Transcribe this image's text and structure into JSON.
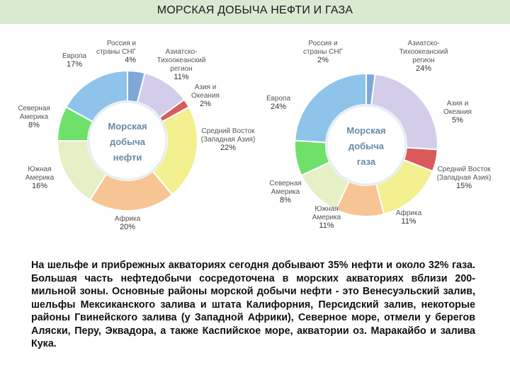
{
  "page": {
    "title": "МОРСКАЯ ДОБЫЧА НЕФТИ И ГАЗА",
    "description": "На шельфе и прибрежных акваториях сегодня добывают 35% нефти и около 32% газа. Большая часть нефтедобычи сосредоточена в морских акваториях вблизи 200-мильной зоны. Основные районы морской добычи нефти - это Венесуэльский залив, шельфы Мексиканского залива и штата Калифорния, Персидский залив, некоторые районы Гвинейского залива (у Западной Африки), Северное море, отмели у берегов Аляски, Перу, Эквадора, а также Каспийское море, акватории оз. Маракайбо и залива Кука."
  },
  "chart_data": [
    {
      "type": "pie",
      "center_label": [
        "Морская",
        "добыча",
        "нефти"
      ],
      "slices": [
        {
          "label": [
            "Россия и",
            "страны СНГ"
          ],
          "value": 4,
          "value_label": "4%",
          "color": "#7fa8d6"
        },
        {
          "label": [
            "Азиатско-",
            "Тихоокеанский",
            "регион"
          ],
          "value": 11,
          "value_label": "11%",
          "color": "#d3cdea"
        },
        {
          "label": [
            "Азия и",
            "Океания"
          ],
          "value": 2,
          "value_label": "2%",
          "color": "#d95b5b"
        },
        {
          "label": [
            "Средний Восток",
            "(Западная Азия)"
          ],
          "value": 22,
          "value_label": "22%",
          "color": "#f3f08f"
        },
        {
          "label": [
            "Африка"
          ],
          "value": 20,
          "value_label": "20%",
          "color": "#f7c493"
        },
        {
          "label": [
            "Южная",
            "Америка"
          ],
          "value": 16,
          "value_label": "16%",
          "color": "#e6f0c6"
        },
        {
          "label": [
            "Северная",
            "Америка"
          ],
          "value": 8,
          "value_label": "8%",
          "color": "#6fe06a"
        },
        {
          "label": [
            "Европа"
          ],
          "value": 17,
          "value_label": "17%",
          "color": "#8fc4ea"
        }
      ]
    },
    {
      "type": "pie",
      "center_label": [
        "Морская",
        "добыча",
        "газа"
      ],
      "slices": [
        {
          "label": [
            "Россия и",
            "страны СНГ"
          ],
          "value": 2,
          "value_label": "2%",
          "color": "#7fa8d6"
        },
        {
          "label": [
            "Азиатско-",
            "Тихоокеанский",
            "регион"
          ],
          "value": 24,
          "value_label": "24%",
          "color": "#d3cdea"
        },
        {
          "label": [
            "Азия и",
            "Океания"
          ],
          "value": 5,
          "value_label": "5%",
          "color": "#d95b5b"
        },
        {
          "label": [
            "Средний Восток",
            "(Западная Азия)"
          ],
          "value": 15,
          "value_label": "15%",
          "color": "#f3f08f"
        },
        {
          "label": [
            "Африка"
          ],
          "value": 11,
          "value_label": "11%",
          "color": "#f7c493"
        },
        {
          "label": [
            "Южная",
            "Америка"
          ],
          "value": 11,
          "value_label": "11%",
          "color": "#e6f0c6"
        },
        {
          "label": [
            "Северная",
            "Америка"
          ],
          "value": 8,
          "value_label": "8%",
          "color": "#6fe06a"
        },
        {
          "label": [
            "Европа"
          ],
          "value": 24,
          "value_label": "24%",
          "color": "#8fc4ea"
        }
      ]
    }
  ]
}
